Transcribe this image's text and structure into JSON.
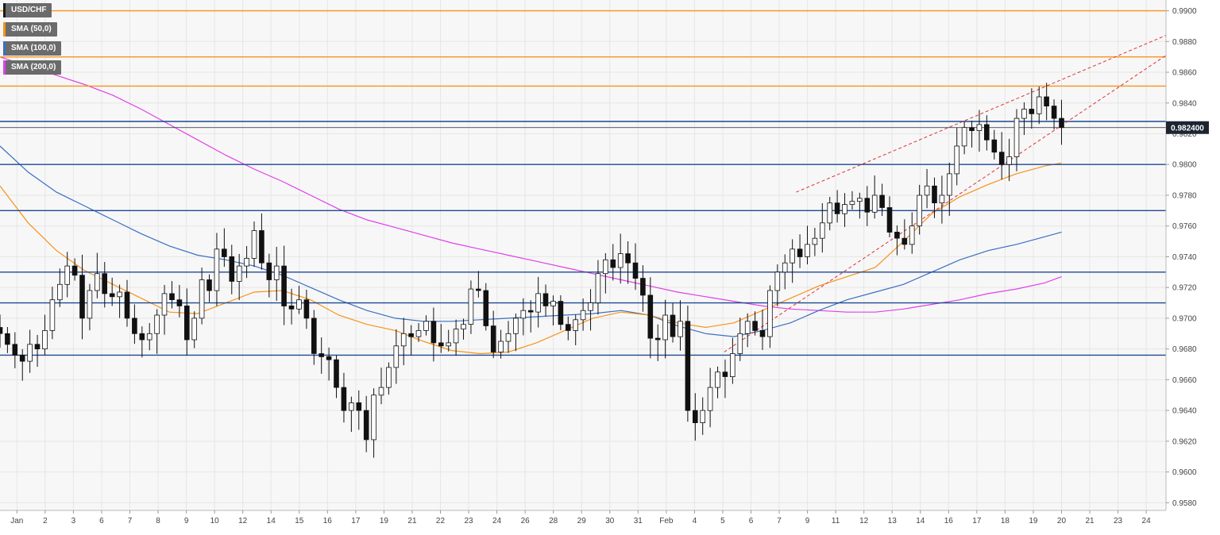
{
  "legend": [
    {
      "label": "USD/CHF",
      "color": "#1a1a1a"
    },
    {
      "label": "SMA (50,0)",
      "color": "#f7931a"
    },
    {
      "label": "SMA (100,0)",
      "color": "#3a6fc4"
    },
    {
      "label": "SMA (200,0)",
      "color": "#e040e8"
    }
  ],
  "price_tag": "0.982400",
  "colors": {
    "orange_level": "#f7931a",
    "blue_level": "#1c4a94",
    "trend": "#e03030",
    "sma50": "#f7931a",
    "sma100": "#3a6fc4",
    "sma200": "#e040e8",
    "grid": "#e6e6e6",
    "background": "#f7f7f7"
  },
  "chart_data": {
    "type": "candlestick",
    "symbol": "USD/CHF",
    "ylim": [
      0.9575,
      0.9907
    ],
    "y_ticks": [
      "0.9580",
      "0.9600",
      "0.9620",
      "0.9640",
      "0.9660",
      "0.9680",
      "0.9700",
      "0.9720",
      "0.9740",
      "0.9760",
      "0.9780",
      "0.9800",
      "0.9820",
      "0.9840",
      "0.9860",
      "0.9880",
      "0.9900"
    ],
    "x_ticks": [
      {
        "label": "Jan",
        "t": 0.3
      },
      {
        "label": "2",
        "t": 1.3
      },
      {
        "label": "3",
        "t": 2.3
      },
      {
        "label": "6",
        "t": 3.3
      },
      {
        "label": "7",
        "t": 4.3
      },
      {
        "label": "8",
        "t": 5.3
      },
      {
        "label": "9",
        "t": 6.3
      },
      {
        "label": "10",
        "t": 7.3
      },
      {
        "label": "12",
        "t": 8.3
      },
      {
        "label": "14",
        "t": 9.3
      },
      {
        "label": "15",
        "t": 10.3
      },
      {
        "label": "16",
        "t": 11.3
      },
      {
        "label": "17",
        "t": 12.3
      },
      {
        "label": "19",
        "t": 13.3
      },
      {
        "label": "21",
        "t": 14.3
      },
      {
        "label": "22",
        "t": 15.3
      },
      {
        "label": "23",
        "t": 16.3
      },
      {
        "label": "24",
        "t": 17.3
      },
      {
        "label": "26",
        "t": 18.3
      },
      {
        "label": "28",
        "t": 19.3
      },
      {
        "label": "29",
        "t": 20.3
      },
      {
        "label": "30",
        "t": 21.3
      },
      {
        "label": "31",
        "t": 22.3
      },
      {
        "label": "Feb",
        "t": 23.3
      },
      {
        "label": "4",
        "t": 24.3
      },
      {
        "label": "5",
        "t": 25.3
      },
      {
        "label": "6",
        "t": 26.3
      },
      {
        "label": "7",
        "t": 27.3
      },
      {
        "label": "9",
        "t": 28.3
      },
      {
        "label": "11",
        "t": 29.3
      },
      {
        "label": "12",
        "t": 30.3
      },
      {
        "label": "13",
        "t": 31.3
      },
      {
        "label": "14",
        "t": 32.3
      },
      {
        "label": "16",
        "t": 33.3
      },
      {
        "label": "17",
        "t": 34.3
      },
      {
        "label": "18",
        "t": 35.3
      },
      {
        "label": "19",
        "t": 36.3
      },
      {
        "label": "20",
        "t": 37.3
      },
      {
        "label": "21",
        "t": 38.3
      },
      {
        "label": "23",
        "t": 39.3
      },
      {
        "label": "24",
        "t": 40.3
      }
    ],
    "t_range": [
      -0.3,
      41.0
    ],
    "horizontal_levels": [
      {
        "price": 0.99,
        "color": "orange"
      },
      {
        "price": 0.987,
        "color": "orange"
      },
      {
        "price": 0.9851,
        "color": "orange"
      },
      {
        "price": 0.9828,
        "color": "blue"
      },
      {
        "price": 0.98,
        "color": "blue"
      },
      {
        "price": 0.977,
        "color": "blue"
      },
      {
        "price": 0.973,
        "color": "blue"
      },
      {
        "price": 0.971,
        "color": "blue"
      },
      {
        "price": 0.9676,
        "color": "blue"
      }
    ],
    "last_price": 0.9824,
    "trendlines": [
      {
        "t1": 27.9,
        "p1": 0.9782,
        "t2": 41.0,
        "p2": 0.9884
      },
      {
        "t1": 25.35,
        "p1": 0.9678,
        "t2": 41.0,
        "p2": 0.9871
      }
    ],
    "sma50": [
      [
        -0.3,
        0.9786
      ],
      [
        0.7,
        0.9762
      ],
      [
        1.7,
        0.9744
      ],
      [
        2.7,
        0.9731
      ],
      [
        3.7,
        0.9722
      ],
      [
        4.7,
        0.9713
      ],
      [
        5.7,
        0.9704
      ],
      [
        6.7,
        0.9703
      ],
      [
        7.7,
        0.971
      ],
      [
        8.7,
        0.9717
      ],
      [
        9.7,
        0.9718
      ],
      [
        10.7,
        0.9712
      ],
      [
        11.7,
        0.9702
      ],
      [
        12.7,
        0.9696
      ],
      [
        13.7,
        0.9692
      ],
      [
        14.7,
        0.9685
      ],
      [
        15.7,
        0.9679
      ],
      [
        16.7,
        0.9677
      ],
      [
        17.7,
        0.9678
      ],
      [
        18.7,
        0.9684
      ],
      [
        19.7,
        0.9692
      ],
      [
        20.7,
        0.97
      ],
      [
        21.7,
        0.9704
      ],
      [
        22.7,
        0.9702
      ],
      [
        23.7,
        0.9697
      ],
      [
        24.7,
        0.9694
      ],
      [
        25.7,
        0.9697
      ],
      [
        26.7,
        0.9705
      ],
      [
        27.7,
        0.9713
      ],
      [
        28.7,
        0.9721
      ],
      [
        29.7,
        0.9727
      ],
      [
        30.7,
        0.9733
      ],
      [
        31.7,
        0.975
      ],
      [
        32.7,
        0.9768
      ],
      [
        33.7,
        0.9779
      ],
      [
        34.7,
        0.9787
      ],
      [
        35.7,
        0.9794
      ],
      [
        36.7,
        0.9799
      ],
      [
        37.3,
        0.9801
      ]
    ],
    "sma100": [
      [
        -0.3,
        0.9812
      ],
      [
        0.7,
        0.9795
      ],
      [
        1.7,
        0.9782
      ],
      [
        2.7,
        0.9773
      ],
      [
        3.7,
        0.9764
      ],
      [
        4.7,
        0.9755
      ],
      [
        5.7,
        0.9747
      ],
      [
        6.7,
        0.9741
      ],
      [
        7.7,
        0.9738
      ],
      [
        8.7,
        0.9734
      ],
      [
        9.7,
        0.9728
      ],
      [
        10.7,
        0.972
      ],
      [
        11.7,
        0.9712
      ],
      [
        12.7,
        0.9705
      ],
      [
        13.7,
        0.97
      ],
      [
        14.7,
        0.9698
      ],
      [
        15.7,
        0.9698
      ],
      [
        16.7,
        0.9699
      ],
      [
        17.7,
        0.97
      ],
      [
        18.7,
        0.9701
      ],
      [
        19.7,
        0.9702
      ],
      [
        20.7,
        0.9703
      ],
      [
        21.7,
        0.9705
      ],
      [
        22.7,
        0.9702
      ],
      [
        23.7,
        0.9695
      ],
      [
        24.7,
        0.969
      ],
      [
        25.7,
        0.9688
      ],
      [
        26.7,
        0.9692
      ],
      [
        27.7,
        0.9697
      ],
      [
        28.7,
        0.9705
      ],
      [
        29.7,
        0.9712
      ],
      [
        30.7,
        0.9717
      ],
      [
        31.7,
        0.9722
      ],
      [
        32.7,
        0.973
      ],
      [
        33.7,
        0.9738
      ],
      [
        34.7,
        0.9744
      ],
      [
        35.7,
        0.9748
      ],
      [
        36.7,
        0.9753
      ],
      [
        37.3,
        0.9756
      ]
    ],
    "sma200": [
      [
        -0.3,
        0.987
      ],
      [
        0.7,
        0.9864
      ],
      [
        1.7,
        0.9858
      ],
      [
        2.7,
        0.9852
      ],
      [
        3.7,
        0.9845
      ],
      [
        4.7,
        0.9836
      ],
      [
        5.7,
        0.9826
      ],
      [
        6.7,
        0.9816
      ],
      [
        7.7,
        0.9806
      ],
      [
        8.7,
        0.9797
      ],
      [
        9.7,
        0.9789
      ],
      [
        10.7,
        0.978
      ],
      [
        11.7,
        0.9771
      ],
      [
        12.7,
        0.9764
      ],
      [
        13.7,
        0.9759
      ],
      [
        14.7,
        0.9754
      ],
      [
        15.7,
        0.9749
      ],
      [
        16.7,
        0.9745
      ],
      [
        17.7,
        0.9741
      ],
      [
        18.7,
        0.9737
      ],
      [
        19.7,
        0.9733
      ],
      [
        20.7,
        0.9729
      ],
      [
        21.7,
        0.9725
      ],
      [
        22.7,
        0.9721
      ],
      [
        23.7,
        0.9717
      ],
      [
        24.7,
        0.9714
      ],
      [
        25.7,
        0.9711
      ],
      [
        26.7,
        0.9708
      ],
      [
        27.7,
        0.9706
      ],
      [
        28.7,
        0.9705
      ],
      [
        29.7,
        0.9704
      ],
      [
        30.7,
        0.9704
      ],
      [
        31.7,
        0.9706
      ],
      [
        32.7,
        0.9709
      ],
      [
        33.7,
        0.9712
      ],
      [
        34.7,
        0.9716
      ],
      [
        35.7,
        0.9719
      ],
      [
        36.7,
        0.9723
      ],
      [
        37.3,
        0.9727
      ]
    ],
    "closes": [
      0.969,
      0.9683,
      0.9676,
      0.9672,
      0.9683,
      0.968,
      0.9692,
      0.9712,
      0.9722,
      0.9734,
      0.9728,
      0.97,
      0.9718,
      0.9729,
      0.9716,
      0.9714,
      0.9717,
      0.97,
      0.969,
      0.9686,
      0.969,
      0.9702,
      0.9716,
      0.9712,
      0.9708,
      0.9686,
      0.97,
      0.9725,
      0.9718,
      0.9745,
      0.974,
      0.9724,
      0.9734,
      0.9739,
      0.9757,
      0.9736,
      0.9725,
      0.9734,
      0.9708,
      0.9706,
      0.9712,
      0.97,
      0.9677,
      0.9675,
      0.9673,
      0.9655,
      0.964,
      0.9645,
      0.964,
      0.9621,
      0.965,
      0.9655,
      0.9668,
      0.9682,
      0.969,
      0.9688,
      0.9692,
      0.9698,
      0.9684,
      0.9682,
      0.9684,
      0.9693,
      0.9696,
      0.9719,
      0.9718,
      0.9695,
      0.9678,
      0.9685,
      0.969,
      0.97,
      0.9705,
      0.9704,
      0.9716,
      0.9708,
      0.9711,
      0.9696,
      0.9692,
      0.9699,
      0.9705,
      0.971,
      0.9729,
      0.9738,
      0.9733,
      0.9742,
      0.9736,
      0.9726,
      0.9715,
      0.9687,
      0.9686,
      0.9702,
      0.9688,
      0.9698,
      0.964,
      0.9632,
      0.964,
      0.9655,
      0.9665,
      0.9662,
      0.9677,
      0.969,
      0.9698,
      0.9692,
      0.9688,
      0.9718,
      0.973,
      0.9736,
      0.9745,
      0.974,
      0.9748,
      0.9752,
      0.9762,
      0.9775,
      0.9768,
      0.9774,
      0.9776,
      0.9778,
      0.9769,
      0.978,
      0.9772,
      0.9756,
      0.9752,
      0.9748,
      0.976,
      0.978,
      0.9786,
      0.9775,
      0.978,
      0.9794,
      0.9812,
      0.9824,
      0.9822,
      0.9826,
      0.9816,
      0.9808,
      0.98,
      0.9805,
      0.983,
      0.9836,
      0.9833,
      0.9844,
      0.9838,
      0.983,
      0.9824
    ]
  }
}
